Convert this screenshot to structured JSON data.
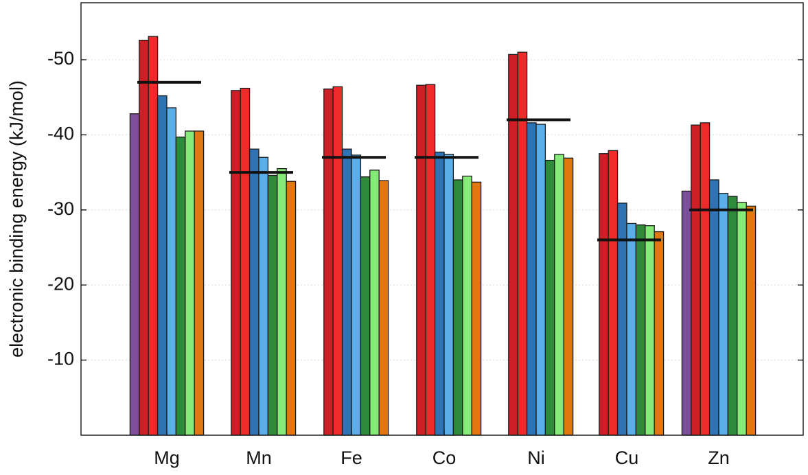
{
  "chart_data": {
    "type": "bar",
    "title": "",
    "xlabel": "",
    "ylabel": "electronic binding energy (kJ/mol)",
    "ylim": [
      0,
      -57
    ],
    "yticks": [
      -10,
      -20,
      -30,
      -40,
      -50
    ],
    "grid": "horizontal dotted",
    "categories": [
      "Mg",
      "Mn",
      "Fe",
      "Co",
      "Ni",
      "Cu",
      "Zn"
    ],
    "series": [
      {
        "color": "#7b4f9a",
        "values": [
          -42.8,
          null,
          null,
          null,
          null,
          null,
          -32.5
        ]
      },
      {
        "color": "#cf1f26",
        "values": [
          -52.6,
          -45.9,
          -46.1,
          -46.6,
          -50.7,
          -37.5,
          -41.3
        ]
      },
      {
        "color": "#ee2a2a",
        "values": [
          -53.1,
          -46.2,
          -46.4,
          -46.7,
          -51.0,
          -37.9,
          -41.6
        ]
      },
      {
        "color": "#2e74b5",
        "values": [
          -45.2,
          -38.1,
          -38.1,
          -37.7,
          -41.6,
          -30.9,
          -34.0
        ]
      },
      {
        "color": "#5aaeea",
        "values": [
          -43.6,
          -37.0,
          -37.3,
          -37.4,
          -41.4,
          -28.2,
          -32.2
        ]
      },
      {
        "color": "#2e8b3a",
        "values": [
          -39.7,
          -34.6,
          -34.4,
          -34.0,
          -36.6,
          -28.0,
          -31.8
        ]
      },
      {
        "color": "#86ea78",
        "values": [
          -40.5,
          -35.5,
          -35.3,
          -34.5,
          -37.4,
          -27.9,
          -31.0
        ]
      },
      {
        "color": "#e0780f",
        "values": [
          -40.5,
          -33.8,
          -33.9,
          -33.7,
          -36.9,
          -27.1,
          -30.5
        ]
      }
    ],
    "reference_values": [
      -47.0,
      -35.0,
      -37.0,
      -37.0,
      -42.0,
      -26.0,
      -30.0
    ]
  }
}
